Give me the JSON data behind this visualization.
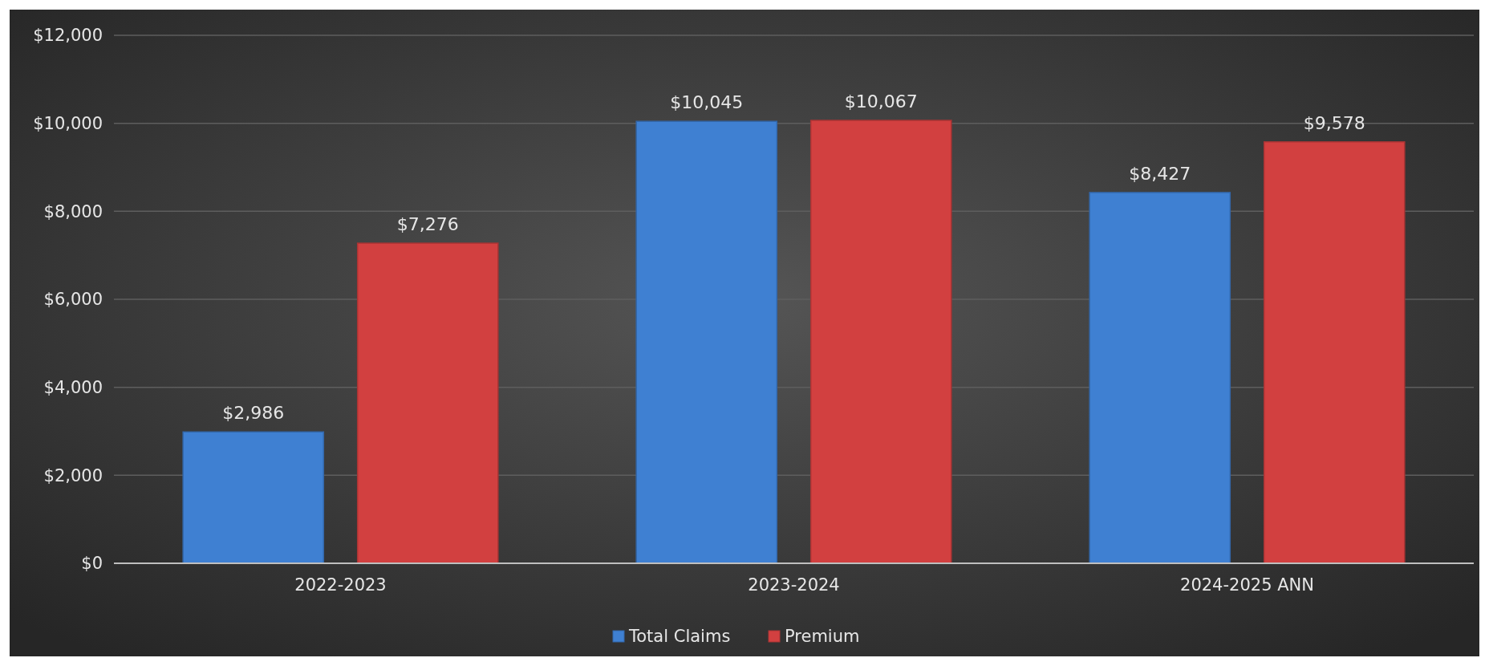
{
  "chart_data": {
    "type": "bar",
    "categories": [
      "2022-2023",
      "2023-2024",
      "2024-2025 ANN"
    ],
    "series": [
      {
        "name": "Total Claims",
        "color": "#3f80d2",
        "values": [
          2986,
          10045,
          8427
        ],
        "value_labels": [
          "$2,986",
          "$10,045",
          "$8,427"
        ]
      },
      {
        "name": "Premium",
        "color": "#d24040",
        "values": [
          7276,
          10067,
          9578
        ],
        "value_labels": [
          "$7,276",
          "$10,067",
          "$9,578"
        ]
      }
    ],
    "ylim": [
      0,
      12000
    ],
    "yticks": [
      {
        "value": 0,
        "label": "$0"
      },
      {
        "value": 2000,
        "label": "$2,000"
      },
      {
        "value": 4000,
        "label": "$4,000"
      },
      {
        "value": 6000,
        "label": "$6,000"
      },
      {
        "value": 8000,
        "label": "$8,000"
      },
      {
        "value": 10000,
        "label": "$10,000"
      },
      {
        "value": 12000,
        "label": "$12,000"
      }
    ],
    "grid": "y",
    "legend": "bottom"
  }
}
